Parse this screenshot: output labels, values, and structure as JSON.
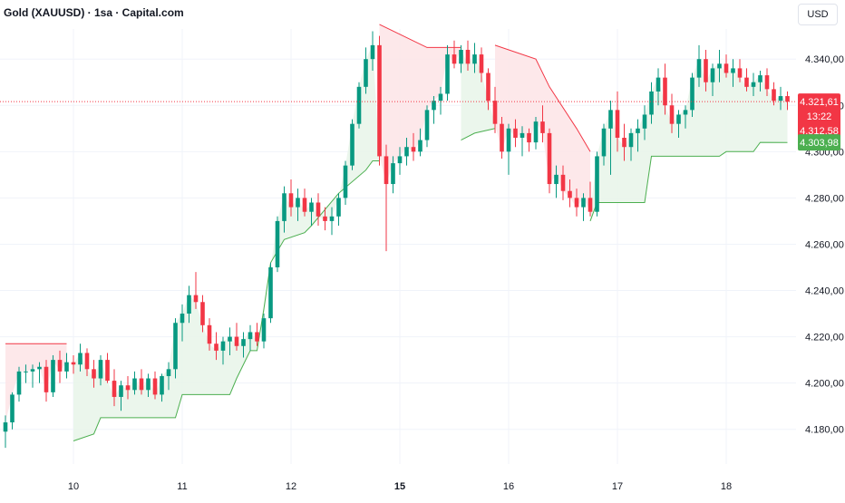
{
  "header": {
    "title": "Gold (XAUUSD) · 1sa · Capital.com",
    "currency": "USD"
  },
  "colors": {
    "up": "#089981",
    "down": "#f23645",
    "trail_up": "#4caf50",
    "trail_down": "#f23645",
    "fill_up": "#e8f5e9",
    "fill_down": "#fde4e6",
    "grid": "#f0f3fa",
    "axis_text": "#131722"
  },
  "price_labels": {
    "last_price": "4.321,61",
    "countdown": "13:22",
    "secondary": "4.312,58",
    "stop_level": "4.303,98"
  },
  "chart_data": {
    "type": "candlestick",
    "title": "Gold (XAUUSD) · 1sa · Capital.com",
    "currency": "USD",
    "y_ticks": [
      4180,
      4200,
      4220,
      4240,
      4260,
      4280,
      4300,
      4320,
      4340
    ],
    "y_tick_labels": [
      "4.180,00",
      "4.200,00",
      "4.220,00",
      "4.240,00",
      "4.260,00",
      "4.280,00",
      "4.300,00",
      "4.320,00",
      "4.340,00"
    ],
    "ylim": [
      4165,
      4353
    ],
    "x_ticks": [
      {
        "label": "10",
        "bar": 10,
        "bold": false
      },
      {
        "label": "11",
        "bar": 26,
        "bold": false
      },
      {
        "label": "12",
        "bar": 42,
        "bold": false
      },
      {
        "label": "15",
        "bar": 58,
        "bold": true
      },
      {
        "label": "16",
        "bar": 74,
        "bold": false
      },
      {
        "label": "17",
        "bar": 90,
        "bold": false
      },
      {
        "label": "18",
        "bar": 106,
        "bold": false
      }
    ],
    "bar_count": 116,
    "last_price": 4321.61,
    "secondary_price": 4312.58,
    "trailing_stop_last": 4303.98,
    "candles": [
      [
        4179,
        4186,
        4172,
        4183
      ],
      [
        4183,
        4196,
        4180,
        4195
      ],
      [
        4195,
        4207,
        4192,
        4205
      ],
      [
        4205,
        4208,
        4200,
        4205
      ],
      [
        4205,
        4208,
        4198,
        4206
      ],
      [
        4206,
        4209,
        4200,
        4207
      ],
      [
        4207,
        4210,
        4192,
        4196
      ],
      [
        4196,
        4212,
        4194,
        4210
      ],
      [
        4210,
        4214,
        4200,
        4205
      ],
      [
        4205,
        4213,
        4202,
        4209
      ],
      [
        4209,
        4212,
        4204,
        4208
      ],
      [
        4208,
        4217,
        4205,
        4213
      ],
      [
        4213,
        4215,
        4203,
        4206
      ],
      [
        4206,
        4210,
        4198,
        4202
      ],
      [
        4202,
        4212,
        4199,
        4210
      ],
      [
        4210,
        4213,
        4200,
        4201
      ],
      [
        4201,
        4206,
        4190,
        4194
      ],
      [
        4194,
        4201,
        4188,
        4199
      ],
      [
        4199,
        4203,
        4193,
        4197
      ],
      [
        4197,
        4205,
        4195,
        4202
      ],
      [
        4202,
        4206,
        4195,
        4197
      ],
      [
        4197,
        4204,
        4194,
        4202
      ],
      [
        4202,
        4205,
        4193,
        4195
      ],
      [
        4195,
        4204,
        4192,
        4203
      ],
      [
        4203,
        4209,
        4197,
        4206
      ],
      [
        4206,
        4228,
        4202,
        4226
      ],
      [
        4226,
        4234,
        4218,
        4230
      ],
      [
        4230,
        4242,
        4226,
        4238
      ],
      [
        4238,
        4248,
        4232,
        4235
      ],
      [
        4235,
        4238,
        4222,
        4225
      ],
      [
        4225,
        4228,
        4214,
        4217
      ],
      [
        4217,
        4222,
        4210,
        4214
      ],
      [
        4214,
        4220,
        4208,
        4218
      ],
      [
        4218,
        4224,
        4212,
        4220
      ],
      [
        4220,
        4226,
        4214,
        4216
      ],
      [
        4216,
        4222,
        4211,
        4219
      ],
      [
        4219,
        4225,
        4214,
        4222
      ],
      [
        4222,
        4226,
        4216,
        4218
      ],
      [
        4218,
        4230,
        4215,
        4228
      ],
      [
        4228,
        4252,
        4226,
        4250
      ],
      [
        4250,
        4272,
        4248,
        4270
      ],
      [
        4270,
        4285,
        4265,
        4282
      ],
      [
        4282,
        4288,
        4272,
        4276
      ],
      [
        4276,
        4284,
        4270,
        4280
      ],
      [
        4280,
        4284,
        4272,
        4274
      ],
      [
        4274,
        4280,
        4268,
        4278
      ],
      [
        4278,
        4282,
        4268,
        4272
      ],
      [
        4272,
        4276,
        4266,
        4270
      ],
      [
        4270,
        4276,
        4264,
        4272
      ],
      [
        4272,
        4282,
        4268,
        4280
      ],
      [
        4280,
        4296,
        4277,
        4294
      ],
      [
        4294,
        4314,
        4292,
        4312
      ],
      [
        4312,
        4330,
        4310,
        4328
      ],
      [
        4328,
        4345,
        4325,
        4340
      ],
      [
        4340,
        4352,
        4335,
        4346
      ],
      [
        4346,
        4350,
        4294,
        4298
      ],
      [
        4298,
        4303,
        4257,
        4286
      ],
      [
        4286,
        4298,
        4282,
        4295
      ],
      [
        4295,
        4302,
        4290,
        4298
      ],
      [
        4298,
        4306,
        4294,
        4302
      ],
      [
        4302,
        4308,
        4296,
        4300
      ],
      [
        4300,
        4310,
        4298,
        4305
      ],
      [
        4305,
        4320,
        4302,
        4318
      ],
      [
        4318,
        4324,
        4312,
        4322
      ],
      [
        4322,
        4328,
        4316,
        4325
      ],
      [
        4325,
        4346,
        4322,
        4342
      ],
      [
        4342,
        4348,
        4336,
        4338
      ],
      [
        4338,
        4346,
        4334,
        4344
      ],
      [
        4344,
        4348,
        4335,
        4338
      ],
      [
        4338,
        4347,
        4334,
        4342
      ],
      [
        4342,
        4345,
        4330,
        4334
      ],
      [
        4334,
        4336,
        4318,
        4322
      ],
      [
        4322,
        4328,
        4308,
        4312
      ],
      [
        4312,
        4315,
        4297,
        4300
      ],
      [
        4300,
        4312,
        4290,
        4310
      ],
      [
        4310,
        4314,
        4302,
        4306
      ],
      [
        4306,
        4311,
        4298,
        4308
      ],
      [
        4308,
        4310,
        4300,
        4304
      ],
      [
        4304,
        4315,
        4301,
        4313
      ],
      [
        4313,
        4320,
        4304,
        4308
      ],
      [
        4308,
        4310,
        4282,
        4286
      ],
      [
        4286,
        4294,
        4280,
        4290
      ],
      [
        4290,
        4294,
        4279,
        4283
      ],
      [
        4283,
        4288,
        4276,
        4280
      ],
      [
        4280,
        4284,
        4272,
        4276
      ],
      [
        4276,
        4282,
        4270,
        4280
      ],
      [
        4280,
        4287,
        4272,
        4274
      ],
      [
        4274,
        4300,
        4272,
        4298
      ],
      [
        4298,
        4312,
        4294,
        4310
      ],
      [
        4310,
        4322,
        4290,
        4318
      ],
      [
        4318,
        4326,
        4300,
        4306
      ],
      [
        4306,
        4312,
        4296,
        4302
      ],
      [
        4302,
        4310,
        4296,
        4308
      ],
      [
        4308,
        4314,
        4300,
        4310
      ],
      [
        4310,
        4320,
        4305,
        4316
      ],
      [
        4316,
        4330,
        4312,
        4326
      ],
      [
        4326,
        4336,
        4320,
        4332
      ],
      [
        4332,
        4338,
        4316,
        4320
      ],
      [
        4320,
        4325,
        4308,
        4312
      ],
      [
        4312,
        4318,
        4306,
        4316
      ],
      [
        4316,
        4320,
        4310,
        4318
      ],
      [
        4318,
        4334,
        4315,
        4332
      ],
      [
        4332,
        4346,
        4328,
        4340
      ],
      [
        4340,
        4344,
        4326,
        4330
      ],
      [
        4330,
        4338,
        4324,
        4336
      ],
      [
        4336,
        4344,
        4330,
        4338
      ],
      [
        4338,
        4342,
        4332,
        4334
      ],
      [
        4334,
        4340,
        4328,
        4336
      ],
      [
        4336,
        4340,
        4330,
        4332
      ],
      [
        4332,
        4336,
        4326,
        4328
      ],
      [
        4328,
        4334,
        4324,
        4330
      ],
      [
        4330,
        4335,
        4326,
        4333
      ],
      [
        4333,
        4336,
        4324,
        4327
      ],
      [
        4327,
        4330,
        4320,
        4322
      ],
      [
        4322,
        4328,
        4318,
        4324
      ],
      [
        4324,
        4326,
        4318,
        4321.61
      ]
    ],
    "trailing_stop": [
      [
        0,
        4217,
        "down"
      ],
      [
        9,
        4217,
        "down"
      ],
      [
        10,
        4175,
        "up"
      ],
      [
        13,
        4178,
        "up"
      ],
      [
        14,
        4185,
        "up"
      ],
      [
        25,
        4185,
        "up"
      ],
      [
        26,
        4195,
        "up"
      ],
      [
        33,
        4195,
        "up"
      ],
      [
        34,
        4202,
        "up"
      ],
      [
        36,
        4214,
        "up"
      ],
      [
        37,
        4214,
        "up"
      ],
      [
        38,
        4232,
        "up"
      ],
      [
        39,
        4252,
        "up"
      ],
      [
        41,
        4262,
        "up"
      ],
      [
        44,
        4265,
        "up"
      ],
      [
        45,
        4268,
        "up"
      ],
      [
        49,
        4282,
        "up"
      ],
      [
        53,
        4292,
        "up"
      ],
      [
        54,
        4296,
        "up"
      ],
      [
        55,
        4296,
        "up"
      ],
      [
        55,
        4355,
        "down"
      ],
      [
        62,
        4345,
        "down"
      ],
      [
        67,
        4345,
        "down"
      ],
      [
        67,
        4305,
        "up"
      ],
      [
        69,
        4308,
        "up"
      ],
      [
        72,
        4310,
        "up"
      ],
      [
        72,
        4346,
        "down"
      ],
      [
        78,
        4340,
        "down"
      ],
      [
        80,
        4328,
        "down"
      ],
      [
        84,
        4310,
        "down"
      ],
      [
        86,
        4300,
        "down"
      ],
      [
        86,
        4270,
        "up"
      ],
      [
        87,
        4278,
        "up"
      ],
      [
        94,
        4278,
        "up"
      ],
      [
        95,
        4298,
        "up"
      ],
      [
        105,
        4298,
        "up"
      ],
      [
        106,
        4300,
        "up"
      ],
      [
        110,
        4300,
        "up"
      ],
      [
        111,
        4304,
        "up"
      ],
      [
        115,
        4303.98,
        "up"
      ]
    ]
  }
}
